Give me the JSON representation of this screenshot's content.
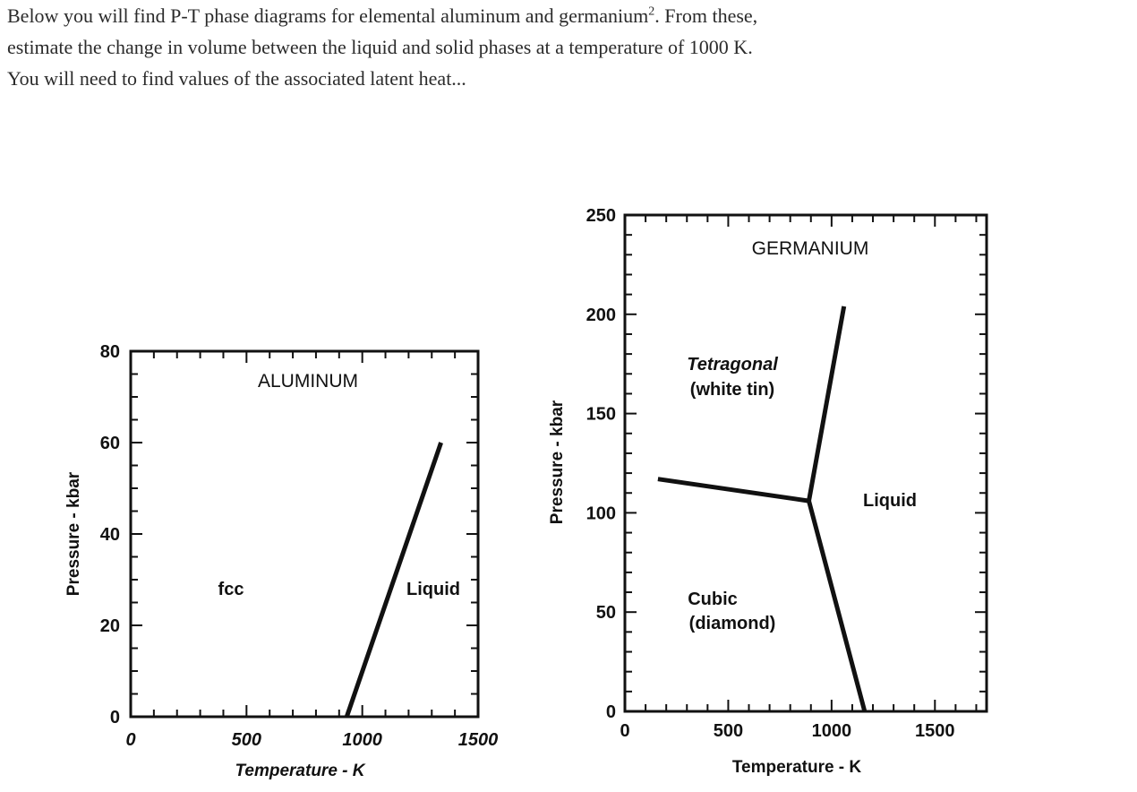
{
  "problem": {
    "line1_prefix": "Below you will find P-T phase diagrams for elemental aluminum and germanium",
    "line1_footnote": "2",
    "line1_suffix": ". From these,",
    "line2": "estimate the change in volume between the liquid and solid phases at a temperature of 1000 K.",
    "line3": "You will need to find values of the associated latent heat..."
  },
  "chart_data": [
    {
      "type": "line",
      "title": "ALUMINUM",
      "xlabel": "Temperature - K",
      "ylabel": "Pressure - kbar",
      "xlim": [
        0,
        1500
      ],
      "ylim": [
        0,
        80
      ],
      "x_ticks": [
        "0",
        "500",
        "1000",
        "1500"
      ],
      "y_ticks": [
        "0",
        "20",
        "40",
        "60",
        "80"
      ],
      "regions": [
        {
          "label": "fcc",
          "x": 450,
          "y": 28
        },
        {
          "label": "Liquid",
          "x": 1290,
          "y": 28
        }
      ],
      "series": [
        {
          "points": [
            [
              933,
              0
            ],
            [
              1340,
              60
            ]
          ]
        }
      ]
    },
    {
      "type": "line",
      "title": "GERMANIUM",
      "xlabel": "Temperature - K",
      "ylabel": "Pressure - kbar",
      "xlim": [
        0,
        1750
      ],
      "ylim": [
        0,
        250
      ],
      "x_ticks": [
        "0",
        "500",
        "1000",
        "1500"
      ],
      "y_ticks": [
        "0",
        "50",
        "100",
        "150",
        "200",
        "250"
      ],
      "regions": [
        {
          "label": "Tetragonal",
          "label2": "(white tin)",
          "x": 520,
          "y": 160
        },
        {
          "label": "Liquid",
          "x": 1410,
          "y": 106
        },
        {
          "label": "Cubic",
          "label2": "(diamond)",
          "x": 530,
          "y": 48
        }
      ],
      "series": [
        {
          "points": [
            [
              160,
              117
            ],
            [
              890,
              106
            ]
          ]
        },
        {
          "points": [
            [
              890,
              106
            ],
            [
              1060,
              204
            ]
          ]
        },
        {
          "points": [
            [
              890,
              106
            ],
            [
              1160,
              0
            ]
          ]
        }
      ]
    }
  ]
}
